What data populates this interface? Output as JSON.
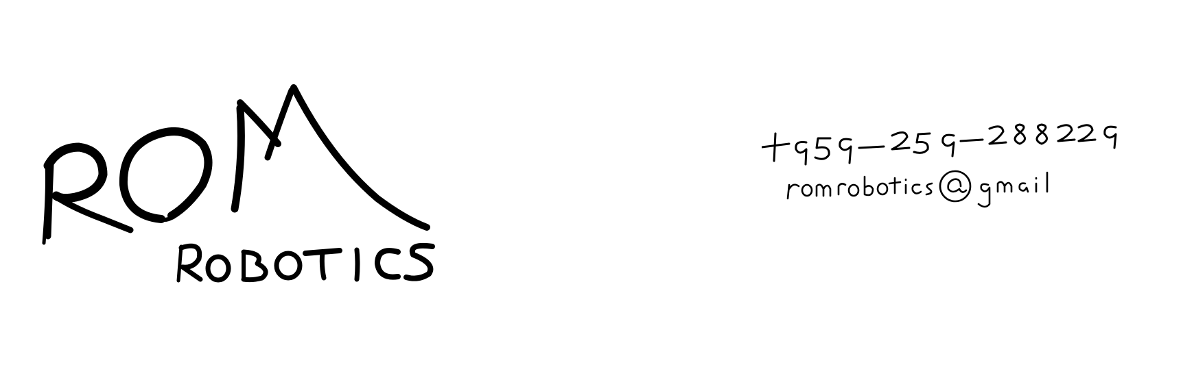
{
  "logo": {
    "brand_top": "ROM",
    "brand_bottom": "ROBOTICS"
  },
  "contact": {
    "phone": "+959-259-288229",
    "email": "romrobotics@gmail"
  },
  "colors": {
    "background": "#ffffff",
    "ink": "#000000"
  }
}
